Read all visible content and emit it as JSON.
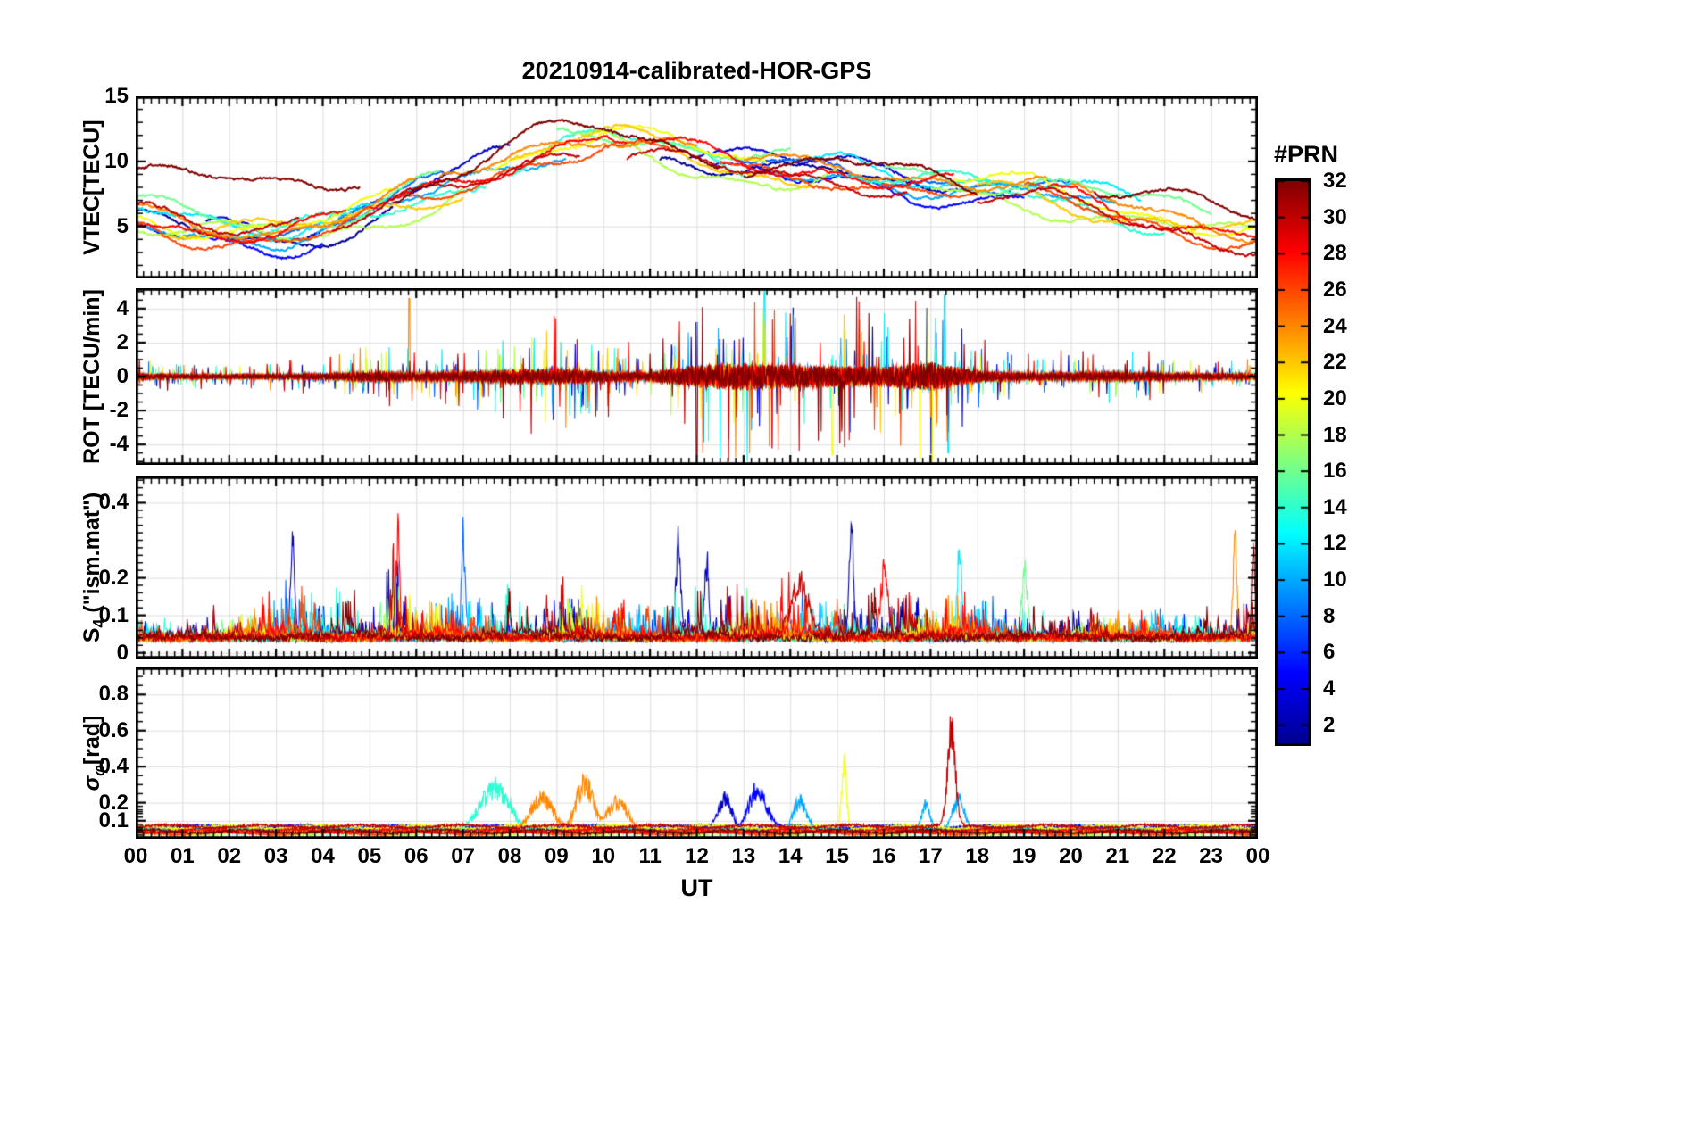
{
  "title": "20210914-calibrated-HOR-GPS",
  "xlabel": "UT",
  "colorbar": {
    "title": "#PRN",
    "min": 1,
    "max": 32,
    "tick_values": [
      32,
      30,
      28,
      26,
      24,
      22,
      20,
      18,
      16,
      14,
      12,
      10,
      8,
      6,
      4,
      2
    ],
    "tick_labels": [
      "32",
      "30",
      "28",
      "26",
      "24",
      "22",
      "20",
      "18",
      "16",
      "14",
      "12",
      "10",
      "8",
      "6",
      "4",
      "2"
    ],
    "colormap_stops": [
      {
        "v": 0.0,
        "c": "#000090"
      },
      {
        "v": 0.125,
        "c": "#0000FF"
      },
      {
        "v": 0.375,
        "c": "#00FFFF"
      },
      {
        "v": 0.5,
        "c": "#7FFF7F"
      },
      {
        "v": 0.625,
        "c": "#FFFF00"
      },
      {
        "v": 0.875,
        "c": "#FF0000"
      },
      {
        "v": 1.0,
        "c": "#800000"
      }
    ]
  },
  "xaxis": {
    "min": 0,
    "max": 24,
    "tick_labels": [
      "00",
      "01",
      "02",
      "03",
      "04",
      "05",
      "06",
      "07",
      "08",
      "09",
      "10",
      "11",
      "12",
      "13",
      "14",
      "15",
      "16",
      "17",
      "18",
      "19",
      "20",
      "21",
      "22",
      "23",
      "00"
    ]
  },
  "grid_color": "#dcdcdc",
  "axis_color": "#000000",
  "chart_data": [
    {
      "type": "line",
      "name": "vtec",
      "ylabel_main": "VTEC[TECU]",
      "ylabel_sub": "",
      "ylabel_rest": "",
      "ylim": [
        1,
        15
      ],
      "yticks": [
        5,
        10,
        15
      ],
      "ytick_labels": [
        "5",
        "10",
        "15"
      ],
      "yminor_step": 1,
      "noise": 0.3,
      "base_curve": [
        [
          0,
          5.5
        ],
        [
          1,
          5.0
        ],
        [
          2,
          4.8
        ],
        [
          3,
          4.5
        ],
        [
          4,
          5.0
        ],
        [
          5,
          6.0
        ],
        [
          6,
          7.2
        ],
        [
          7,
          8.5
        ],
        [
          8,
          10.2
        ],
        [
          9,
          11.5
        ],
        [
          10,
          12.0
        ],
        [
          11,
          11.2
        ],
        [
          12,
          10.2
        ],
        [
          13,
          9.4
        ],
        [
          14,
          9.0
        ],
        [
          15,
          9.5
        ],
        [
          16,
          9.0
        ],
        [
          17,
          8.5
        ],
        [
          18,
          8.0
        ],
        [
          19,
          7.6
        ],
        [
          20,
          7.0
        ],
        [
          21,
          6.2
        ],
        [
          22,
          5.6
        ],
        [
          23,
          5.0
        ],
        [
          24,
          4.5
        ]
      ],
      "series": [
        {
          "prn": 1,
          "offset": -0.4,
          "segments": [
            [
              0.0,
              5.5
            ],
            [
              11.2,
              17.0
            ]
          ]
        },
        {
          "prn": 3,
          "offset": 0.5,
          "segments": [
            [
              1.5,
              8.0
            ],
            [
              11.8,
              18.5
            ]
          ]
        },
        {
          "prn": 5,
          "offset": -0.8,
          "segments": [
            [
              0.0,
              4.0
            ],
            [
              12.3,
              19.0
            ]
          ]
        },
        {
          "prn": 8,
          "offset": 0.2,
          "segments": [
            [
              2.0,
              6.8
            ],
            [
              12.8,
              20.0
            ]
          ]
        },
        {
          "prn": 10,
          "offset": -0.3,
          "segments": [
            [
              0.0,
              5.0
            ],
            [
              5.2,
              9.2
            ],
            [
              13.5,
              21.0
            ]
          ]
        },
        {
          "prn": 12,
          "offset": 0.6,
          "segments": [
            [
              0.0,
              6.2
            ],
            [
              14.0,
              21.5
            ]
          ]
        },
        {
          "prn": 14,
          "offset": -0.2,
          "segments": [
            [
              1.0,
              7.5
            ],
            [
              8.0,
              13.0
            ],
            [
              15.0,
              22.0
            ]
          ]
        },
        {
          "prn": 16,
          "offset": 0.8,
          "segments": [
            [
              0.0,
              6.5
            ],
            [
              9.0,
              14.0
            ],
            [
              16.0,
              23.0
            ]
          ]
        },
        {
          "prn": 18,
          "offset": -0.6,
          "segments": [
            [
              0.0,
              7.0
            ],
            [
              9.5,
              15.0
            ],
            [
              17.0,
              24.0
            ]
          ]
        },
        {
          "prn": 20,
          "offset": 0.3,
          "segments": [
            [
              0.0,
              5.5
            ],
            [
              7.5,
              13.5
            ],
            [
              17.5,
              24.0
            ]
          ]
        },
        {
          "prn": 22,
          "offset": -0.1,
          "segments": [
            [
              0.5,
              7.0
            ],
            [
              8.0,
              14.5
            ],
            [
              18.0,
              24.0
            ]
          ]
        },
        {
          "prn": 24,
          "offset": 0.4,
          "segments": [
            [
              0.0,
              6.0
            ],
            [
              6.5,
              12.0
            ],
            [
              13.0,
              19.5
            ],
            [
              20.0,
              24.0
            ]
          ]
        },
        {
          "prn": 26,
          "offset": -0.5,
          "segments": [
            [
              0.0,
              5.0
            ],
            [
              5.5,
              11.5
            ],
            [
              12.5,
              18.0
            ],
            [
              19.0,
              24.0
            ]
          ]
        },
        {
          "prn": 28,
          "offset": 0.1,
          "segments": [
            [
              0.0,
              4.5
            ],
            [
              5.0,
              10.5
            ],
            [
              11.0,
              17.5
            ],
            [
              19.5,
              24.0
            ]
          ]
        },
        {
          "prn": 30,
          "offset": -0.7,
          "segments": [
            [
              0.0,
              3.5,
              1.5
            ],
            [
              4.2,
              9.5,
              0.3
            ],
            [
              10.5,
              16.5,
              0
            ],
            [
              18.0,
              24.0,
              0
            ]
          ]
        },
        {
          "prn": 32,
          "offset": 0.7,
          "segments": [
            [
              0.0,
              4.8,
              2.8
            ],
            [
              5.5,
              12.5,
              0
            ],
            [
              13.0,
              18.0,
              -0.5
            ],
            [
              20.5,
              24.0,
              0.5
            ]
          ]
        }
      ]
    },
    {
      "type": "line",
      "name": "rot",
      "ylabel_main": "ROT [TECU/min]",
      "ylabel_sub": "",
      "ylabel_rest": "",
      "ylim": [
        -5.2,
        5.2
      ],
      "yticks": [
        -4,
        -2,
        0,
        2,
        4
      ],
      "ytick_labels": [
        "-4",
        "-2",
        "0",
        "2",
        "4"
      ],
      "yminor_step": 0.5,
      "envelope": [
        [
          0,
          0.5
        ],
        [
          1,
          0.4
        ],
        [
          2,
          0.35
        ],
        [
          3,
          0.4
        ],
        [
          4,
          0.45
        ],
        [
          5,
          0.9
        ],
        [
          6,
          0.7
        ],
        [
          7,
          0.9
        ],
        [
          8,
          1.3
        ],
        [
          9,
          1.5
        ],
        [
          10,
          1.0
        ],
        [
          11,
          0.7
        ],
        [
          12,
          2.2
        ],
        [
          13,
          2.6
        ],
        [
          14,
          2.2
        ],
        [
          15,
          2.0
        ],
        [
          16,
          1.8
        ],
        [
          17,
          2.8
        ],
        [
          18,
          1.0
        ],
        [
          19,
          0.6
        ],
        [
          20,
          0.7
        ],
        [
          21,
          0.8
        ],
        [
          22,
          0.6
        ],
        [
          23,
          0.5
        ],
        [
          24,
          0.5
        ]
      ],
      "events": [
        {
          "prn": 24,
          "t": 5.85,
          "v": 4.6
        },
        {
          "prn": 32,
          "t": 12.0,
          "v": -4.6
        },
        {
          "prn": 12,
          "t": 13.45,
          "v": 5.0
        },
        {
          "prn": 20,
          "t": 14.9,
          "v": -4.6
        },
        {
          "prn": 12,
          "t": 17.3,
          "v": 4.8
        },
        {
          "prn": 12,
          "t": 17.38,
          "v": -4.5
        }
      ],
      "series": [
        {
          "prn": 1,
          "gain": 0.9
        },
        {
          "prn": 3,
          "gain": 1.0
        },
        {
          "prn": 5,
          "gain": 0.8
        },
        {
          "prn": 8,
          "gain": 1.1
        },
        {
          "prn": 10,
          "gain": 0.9
        },
        {
          "prn": 12,
          "gain": 1.2
        },
        {
          "prn": 14,
          "gain": 1.0
        },
        {
          "prn": 16,
          "gain": 0.8
        },
        {
          "prn": 18,
          "gain": 0.9
        },
        {
          "prn": 20,
          "gain": 1.1
        },
        {
          "prn": 22,
          "gain": 1.0
        },
        {
          "prn": 24,
          "gain": 1.2
        },
        {
          "prn": 26,
          "gain": 1.1
        },
        {
          "prn": 28,
          "gain": 1.3
        },
        {
          "prn": 30,
          "gain": 1.3
        },
        {
          "prn": 32,
          "gain": 1.2
        }
      ]
    },
    {
      "type": "line",
      "name": "s4",
      "ylabel_main": "S",
      "ylabel_sub": "4",
      "ylabel_rest": " (\"ism.mat\")",
      "ylim": [
        -0.015,
        0.47
      ],
      "yticks": [
        0,
        0.1,
        0.2,
        0.4
      ],
      "ytick_labels": [
        "0",
        "0.1",
        "0.2",
        "0.4"
      ],
      "yminor_step": 0.02,
      "envelope": [
        [
          0,
          0.15
        ],
        [
          1,
          0.12
        ],
        [
          2,
          0.12
        ],
        [
          3,
          0.22
        ],
        [
          3.5,
          0.3
        ],
        [
          4,
          0.22
        ],
        [
          4.6,
          0.32
        ],
        [
          5,
          0.2
        ],
        [
          5.5,
          0.32
        ],
        [
          6,
          0.18
        ],
        [
          6.5,
          0.25
        ],
        [
          7,
          0.18
        ],
        [
          7.5,
          0.22
        ],
        [
          8,
          0.28
        ],
        [
          8.5,
          0.22
        ],
        [
          9,
          0.28
        ],
        [
          9.5,
          0.2
        ],
        [
          10,
          0.16
        ],
        [
          11,
          0.14
        ],
        [
          11.5,
          0.28
        ],
        [
          12,
          0.3
        ],
        [
          12.5,
          0.24
        ],
        [
          13,
          0.26
        ],
        [
          13.5,
          0.2
        ],
        [
          14,
          0.22
        ],
        [
          14.5,
          0.2
        ],
        [
          15,
          0.28
        ],
        [
          15.5,
          0.24
        ],
        [
          16,
          0.26
        ],
        [
          16.5,
          0.2
        ],
        [
          17,
          0.16
        ],
        [
          17.5,
          0.24
        ],
        [
          18,
          0.2
        ],
        [
          18.5,
          0.22
        ],
        [
          19,
          0.18
        ],
        [
          19.5,
          0.2
        ],
        [
          20,
          0.14
        ],
        [
          21,
          0.12
        ],
        [
          22,
          0.18
        ],
        [
          23,
          0.12
        ],
        [
          23.5,
          0.2
        ],
        [
          24,
          0.28
        ]
      ],
      "events": [
        {
          "prn": 3,
          "t": 3.35,
          "peak": 0.37,
          "w": 0.06
        },
        {
          "prn": 28,
          "t": 5.6,
          "peak": 0.45,
          "w": 0.05
        },
        {
          "prn": 8,
          "t": 7.0,
          "peak": 0.33,
          "w": 0.06
        },
        {
          "prn": 1,
          "t": 11.6,
          "peak": 0.37,
          "w": 0.08
        },
        {
          "prn": 3,
          "t": 12.2,
          "peak": 0.33,
          "w": 0.06
        },
        {
          "prn": 30,
          "t": 14.2,
          "peak": 0.2,
          "w": 0.3
        },
        {
          "prn": 1,
          "t": 15.3,
          "peak": 0.36,
          "w": 0.07
        },
        {
          "prn": 28,
          "t": 16.0,
          "peak": 0.3,
          "w": 0.1
        },
        {
          "prn": 12,
          "t": 17.6,
          "peak": 0.33,
          "w": 0.08
        },
        {
          "prn": 16,
          "t": 19.0,
          "peak": 0.25,
          "w": 0.1
        },
        {
          "prn": 24,
          "t": 23.5,
          "peak": 0.37,
          "w": 0.06
        },
        {
          "prn": 32,
          "t": 23.9,
          "peak": 0.37,
          "w": 0.05
        }
      ],
      "series": [
        {
          "prn": 1,
          "gain": 1.1
        },
        {
          "prn": 3,
          "gain": 1.0
        },
        {
          "prn": 5,
          "gain": 0.8
        },
        {
          "prn": 8,
          "gain": 1.1
        },
        {
          "prn": 10,
          "gain": 1.0
        },
        {
          "prn": 12,
          "gain": 0.9
        },
        {
          "prn": 14,
          "gain": 1.0
        },
        {
          "prn": 16,
          "gain": 1.0
        },
        {
          "prn": 18,
          "gain": 0.9
        },
        {
          "prn": 20,
          "gain": 1.0
        },
        {
          "prn": 22,
          "gain": 0.9
        },
        {
          "prn": 24,
          "gain": 1.1
        },
        {
          "prn": 26,
          "gain": 1.0
        },
        {
          "prn": 28,
          "gain": 1.2
        },
        {
          "prn": 30,
          "gain": 1.1
        },
        {
          "prn": 32,
          "gain": 1.0
        }
      ]
    },
    {
      "type": "line",
      "name": "sigma",
      "ylabel_main": "σ",
      "ylabel_sub": "φ",
      "ylabel_rest": "[rad]",
      "ylim": [
        0,
        0.95
      ],
      "yticks": [
        0.1,
        0.2,
        0.4,
        0.6,
        0.8
      ],
      "ytick_labels": [
        "0.1",
        "0.2",
        "0.4",
        "0.6",
        "0.8"
      ],
      "yminor_step": 0.05,
      "yminor_dense_step": 0.02,
      "yminor_dense_max": 0.2,
      "baseline": 0.05,
      "events": [
        {
          "prn": 14,
          "t": 7.7,
          "w": 0.45,
          "peak": 0.3
        },
        {
          "prn": 24,
          "t": 8.7,
          "w": 0.35,
          "peak": 0.22
        },
        {
          "prn": 24,
          "t": 9.6,
          "w": 0.25,
          "peak": 0.36
        },
        {
          "prn": 24,
          "t": 10.3,
          "w": 0.3,
          "peak": 0.2
        },
        {
          "prn": 3,
          "t": 12.6,
          "w": 0.2,
          "peak": 0.22
        },
        {
          "prn": 5,
          "t": 13.3,
          "w": 0.25,
          "peak": 0.28
        },
        {
          "prn": 10,
          "t": 14.2,
          "w": 0.2,
          "peak": 0.2
        },
        {
          "prn": 20,
          "t": 15.15,
          "w": 0.07,
          "peak": 0.52
        },
        {
          "prn": 10,
          "t": 16.9,
          "w": 0.12,
          "peak": 0.16
        },
        {
          "prn": 30,
          "t": 17.45,
          "w": 0.12,
          "peak": 0.65
        },
        {
          "prn": 10,
          "t": 17.6,
          "w": 0.18,
          "peak": 0.22
        }
      ],
      "series": [
        {
          "prn": 1
        },
        {
          "prn": 3
        },
        {
          "prn": 5
        },
        {
          "prn": 8
        },
        {
          "prn": 10
        },
        {
          "prn": 12
        },
        {
          "prn": 14
        },
        {
          "prn": 16
        },
        {
          "prn": 18
        },
        {
          "prn": 20
        },
        {
          "prn": 22
        },
        {
          "prn": 24
        },
        {
          "prn": 26
        },
        {
          "prn": 28
        },
        {
          "prn": 30
        },
        {
          "prn": 32
        }
      ]
    }
  ]
}
